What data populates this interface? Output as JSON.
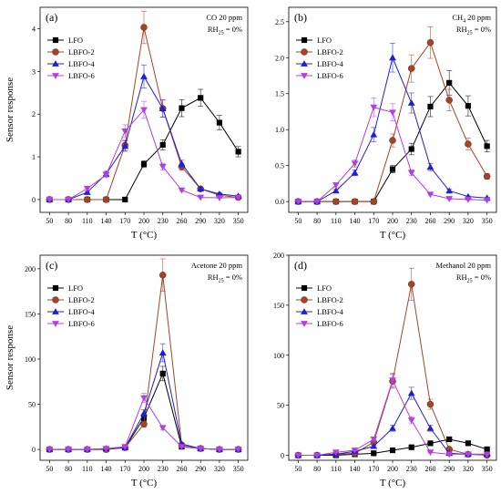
{
  "chart_data": [
    {
      "type": "line",
      "panel_label": "(a)",
      "annotation": [
        "CO 20 ppm",
        "RH",
        "25",
        " = 0%"
      ],
      "xlabel": "T (°C)",
      "ylabel": "Sensor response",
      "x": [
        50,
        80,
        110,
        140,
        170,
        200,
        230,
        260,
        290,
        320,
        350
      ],
      "x_tick_labels": [
        "50",
        "80",
        "110",
        "140",
        "170",
        "200",
        "230",
        "260",
        "290",
        "320",
        "350"
      ],
      "ylim": [
        -0.3,
        4.5
      ],
      "y_ticks": [
        0,
        1,
        2,
        3,
        4
      ],
      "y_tick_labels": [
        "0",
        "1",
        "2",
        "3",
        "4"
      ],
      "legend_position": "top-left",
      "series": [
        {
          "name": "LFO",
          "color": "#000000",
          "marker": "square",
          "values": [
            0,
            0,
            0,
            0,
            0,
            0.83,
            1.28,
            2.14,
            2.38,
            1.8,
            1.12
          ],
          "errors": [
            0,
            0,
            0,
            0,
            0,
            0.08,
            0.12,
            0.2,
            0.2,
            0.17,
            0.12
          ]
        },
        {
          "name": "LBFO-2",
          "color": "#A0442A",
          "marker": "circle",
          "values": [
            0,
            0,
            0,
            0,
            1.27,
            4.03,
            2.13,
            0.77,
            0.25,
            0.1,
            0.05
          ],
          "errors": [
            0,
            0,
            0,
            0,
            0.12,
            0.38,
            0.2,
            0.08,
            0.03,
            0.02,
            0.01
          ]
        },
        {
          "name": "LBFO-4",
          "color": "#1F1FD6",
          "marker": "triangle-up",
          "values": [
            0,
            0,
            0.17,
            0.6,
            1.25,
            2.88,
            2.13,
            0.84,
            0.25,
            0.13,
            0.08
          ],
          "errors": [
            0,
            0,
            0.02,
            0.06,
            0.12,
            0.27,
            0.2,
            0.08,
            0.03,
            0.02,
            0.01
          ]
        },
        {
          "name": "LBFO-6",
          "color": "#B040E0",
          "marker": "triangle-down",
          "values": [
            0,
            0,
            0.26,
            0.58,
            1.6,
            2.1,
            0.77,
            0.22,
            0.05,
            0.04,
            0.05
          ],
          "errors": [
            0,
            0,
            0.03,
            0.06,
            0.15,
            0.2,
            0.08,
            0.03,
            0.01,
            0.01,
            0.01
          ]
        }
      ]
    },
    {
      "type": "line",
      "panel_label": "(b)",
      "annotation": [
        "CH",
        "4",
        " 20 ppm",
        "RH",
        "25",
        " = 0%"
      ],
      "xlabel": "T (°C)",
      "ylabel": "",
      "x": [
        50,
        80,
        110,
        140,
        170,
        200,
        230,
        260,
        290,
        320,
        350
      ],
      "x_tick_labels": [
        "50",
        "80",
        "110",
        "140",
        "170",
        "200",
        "230",
        "260",
        "290",
        "320",
        "350"
      ],
      "ylim": [
        -0.15,
        2.7
      ],
      "y_ticks": [
        0,
        0.5,
        1.0,
        1.5,
        2.0,
        2.5
      ],
      "y_tick_labels": [
        "0.0",
        "0.5",
        "1.0",
        "1.5",
        "2.0",
        "2.5"
      ],
      "legend_position": "top-left",
      "series": [
        {
          "name": "LFO",
          "color": "#000000",
          "marker": "square",
          "values": [
            0,
            0,
            0,
            0,
            0,
            0.45,
            0.73,
            1.32,
            1.65,
            1.33,
            0.77
          ],
          "errors": [
            0,
            0,
            0,
            0,
            0,
            0.05,
            0.08,
            0.14,
            0.17,
            0.14,
            0.08
          ]
        },
        {
          "name": "LBFO-2",
          "color": "#A0442A",
          "marker": "circle",
          "values": [
            0,
            0,
            0,
            0,
            0,
            0.85,
            1.85,
            2.21,
            1.41,
            0.8,
            0.35
          ],
          "errors": [
            0,
            0,
            0,
            0,
            0,
            0.09,
            0.19,
            0.22,
            0.15,
            0.08,
            0.04
          ]
        },
        {
          "name": "LBFO-4",
          "color": "#1F1FD6",
          "marker": "triangle-up",
          "values": [
            0,
            0,
            0.15,
            0.4,
            0.93,
            2.0,
            1.37,
            0.48,
            0.15,
            0.07,
            0.05
          ],
          "errors": [
            0,
            0,
            0.02,
            0.04,
            0.1,
            0.2,
            0.14,
            0.05,
            0.02,
            0.01,
            0.01
          ]
        },
        {
          "name": "LBFO-6",
          "color": "#B040E0",
          "marker": "triangle-down",
          "values": [
            0,
            0,
            0.23,
            0.53,
            1.31,
            1.24,
            0.4,
            0.1,
            0.04,
            0.03,
            0.02
          ],
          "errors": [
            0,
            0,
            0.03,
            0.05,
            0.13,
            0.12,
            0.04,
            0.01,
            0.01,
            0.01,
            0.01
          ]
        }
      ]
    },
    {
      "type": "line",
      "panel_label": "(c)",
      "annotation": [
        "Acetone 20 ppm",
        "RH",
        "25",
        " = 0%"
      ],
      "xlabel": "T (°C)",
      "ylabel": "Sensor response",
      "x": [
        50,
        80,
        110,
        140,
        170,
        200,
        230,
        260,
        290,
        320,
        350
      ],
      "x_tick_labels": [
        "50",
        "80",
        "110",
        "140",
        "170",
        "200",
        "230",
        "260",
        "290",
        "320",
        "350"
      ],
      "ylim": [
        -12,
        215
      ],
      "y_ticks": [
        0,
        50,
        100,
        150,
        200
      ],
      "y_tick_labels": [
        "0",
        "50",
        "100",
        "150",
        "200"
      ],
      "legend_position": "top-left",
      "series": [
        {
          "name": "LFO",
          "color": "#000000",
          "marker": "square",
          "values": [
            0,
            0,
            0,
            0,
            2,
            35,
            84,
            3,
            1,
            0,
            0
          ],
          "errors": [
            0,
            0,
            0,
            0,
            0.3,
            3.5,
            8,
            0.5,
            0.2,
            0,
            0
          ]
        },
        {
          "name": "LBFO-2",
          "color": "#A0442A",
          "marker": "circle",
          "values": [
            0,
            0,
            0,
            0,
            2,
            28,
            193,
            5,
            1,
            0,
            0
          ],
          "errors": [
            0,
            0,
            0,
            0,
            0.3,
            3,
            18,
            0.6,
            0.2,
            0,
            0
          ]
        },
        {
          "name": "LBFO-4",
          "color": "#1F1FD6",
          "marker": "triangle-up",
          "values": [
            0,
            0,
            0,
            1,
            2,
            40,
            107,
            6,
            1,
            0,
            0
          ],
          "errors": [
            0,
            0,
            0,
            0.2,
            0.3,
            4,
            10,
            0.7,
            0.2,
            0,
            0
          ]
        },
        {
          "name": "LBFO-6",
          "color": "#B040E0",
          "marker": "triangle-down",
          "values": [
            0,
            0,
            0,
            1,
            3,
            57,
            24,
            3,
            1,
            0,
            0
          ],
          "errors": [
            0,
            0,
            0,
            0.2,
            0.4,
            5,
            2.5,
            0.5,
            0.2,
            0,
            0
          ]
        }
      ]
    },
    {
      "type": "line",
      "panel_label": "(d)",
      "annotation": [
        "Methanol 20 ppm",
        "RH",
        "25",
        " = 0%"
      ],
      "xlabel": "T (°C)",
      "ylabel": "",
      "x": [
        50,
        80,
        110,
        140,
        170,
        200,
        230,
        260,
        290,
        320,
        350
      ],
      "x_tick_labels": [
        "50",
        "80",
        "110",
        "140",
        "170",
        "200",
        "230",
        "260",
        "290",
        "320",
        "350"
      ],
      "ylim": [
        -5,
        200
      ],
      "y_ticks": [
        0,
        50,
        100,
        150,
        200
      ],
      "y_tick_labels": [
        "0",
        "50",
        "100",
        "150",
        "200"
      ],
      "legend_position": "top-left",
      "series": [
        {
          "name": "LFO",
          "color": "#000000",
          "marker": "square",
          "values": [
            0,
            0,
            0,
            1,
            2,
            5,
            8,
            12,
            16,
            12,
            6
          ],
          "errors": [
            0,
            0,
            0,
            0.2,
            0.3,
            0.6,
            0.9,
            1.3,
            1.7,
            1.3,
            0.7
          ]
        },
        {
          "name": "LBFO-2",
          "color": "#A0442A",
          "marker": "circle",
          "values": [
            0,
            0,
            1,
            2,
            13,
            74,
            171,
            51,
            6,
            1,
            0
          ],
          "errors": [
            0,
            0,
            0.2,
            0.3,
            1.5,
            7,
            16,
            5,
            0.7,
            0.2,
            0
          ]
        },
        {
          "name": "LBFO-4",
          "color": "#1F1FD6",
          "marker": "triangle-up",
          "values": [
            0,
            0,
            1,
            4,
            9,
            27,
            62,
            27,
            2,
            1,
            1
          ],
          "errors": [
            0,
            0,
            0.2,
            0.5,
            1,
            3,
            6,
            3,
            0.3,
            0.2,
            0.2
          ]
        },
        {
          "name": "LBFO-6",
          "color": "#B040E0",
          "marker": "triangle-down",
          "values": [
            0,
            0,
            3,
            5,
            16,
            75,
            35,
            3,
            1,
            1,
            1
          ],
          "errors": [
            0,
            0,
            0.4,
            0.6,
            2,
            7,
            3.5,
            0.4,
            0.2,
            0.2,
            0.2
          ]
        }
      ]
    }
  ]
}
